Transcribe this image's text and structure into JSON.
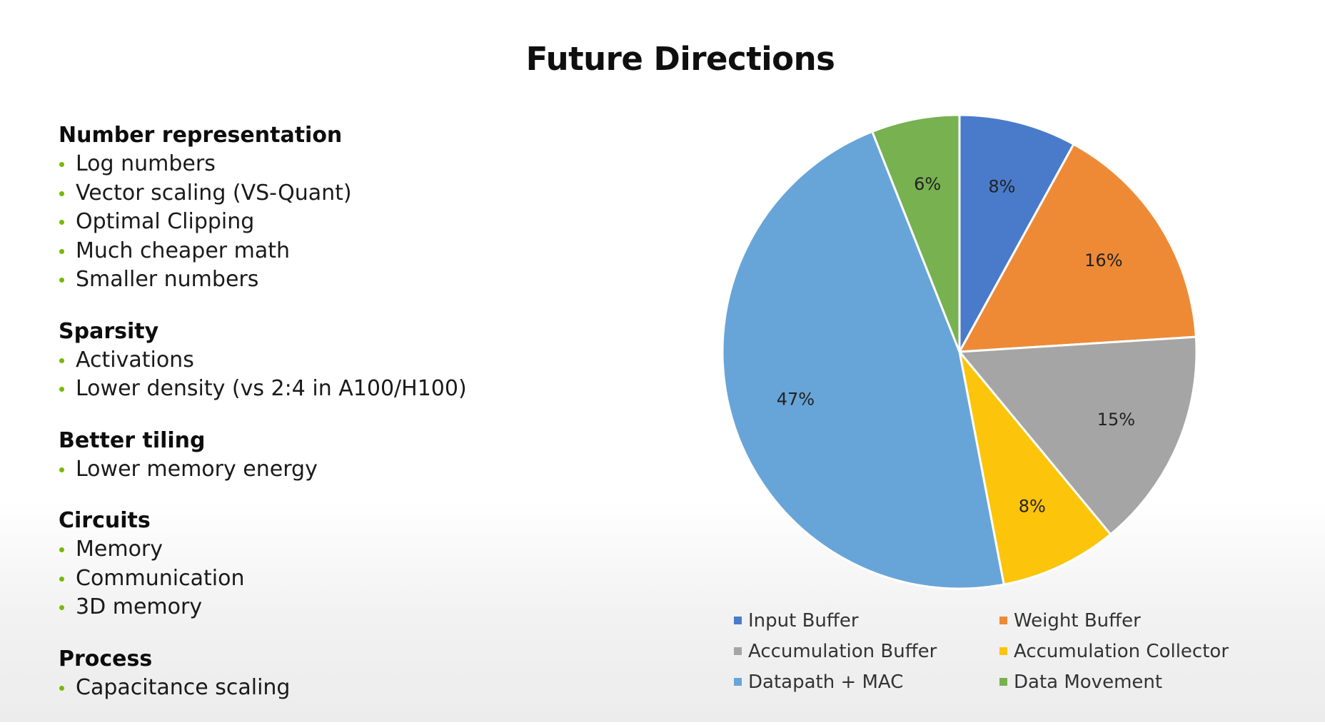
{
  "title": "Future Directions",
  "sections": [
    {
      "heading": "Number representation",
      "items": [
        "Log numbers",
        "Vector scaling (VS-Quant)",
        "Optimal Clipping",
        "Much cheaper math",
        "Smaller numbers"
      ]
    },
    {
      "heading": "Sparsity",
      "items": [
        "Activations",
        "Lower density (vs 2:4 in A100/H100)"
      ]
    },
    {
      "heading": "Better tiling",
      "items": [
        "Lower memory energy"
      ]
    },
    {
      "heading": "Circuits",
      "items": [
        "Memory",
        "Communication",
        "3D memory"
      ]
    },
    {
      "heading": "Process",
      "items": [
        "Capacitance scaling"
      ]
    }
  ],
  "colors": {
    "bullet": "#76b900"
  },
  "chart_data": {
    "type": "pie",
    "title": "",
    "legend_position": "bottom",
    "start_angle_deg": 0,
    "direction": "clockwise",
    "slices": [
      {
        "name": "Input Buffer",
        "value": 8,
        "label": "8%",
        "color": "#4a7bcb"
      },
      {
        "name": "Weight Buffer",
        "value": 16,
        "label": "16%",
        "color": "#ee8a36"
      },
      {
        "name": "Accumulation Buffer",
        "value": 15,
        "label": "15%",
        "color": "#a5a5a5"
      },
      {
        "name": "Accumulation Collector",
        "value": 8,
        "label": "8%",
        "color": "#fcc40b"
      },
      {
        "name": "Datapath + MAC",
        "value": 47,
        "label": "47%",
        "color": "#67a5d8"
      },
      {
        "name": "Data Movement",
        "value": 6,
        "label": "6%",
        "color": "#77b150"
      }
    ],
    "legend": [
      "Input Buffer",
      "Weight Buffer",
      "Accumulation Buffer",
      "Accumulation Collector",
      "Datapath + MAC",
      "Data Movement"
    ]
  }
}
